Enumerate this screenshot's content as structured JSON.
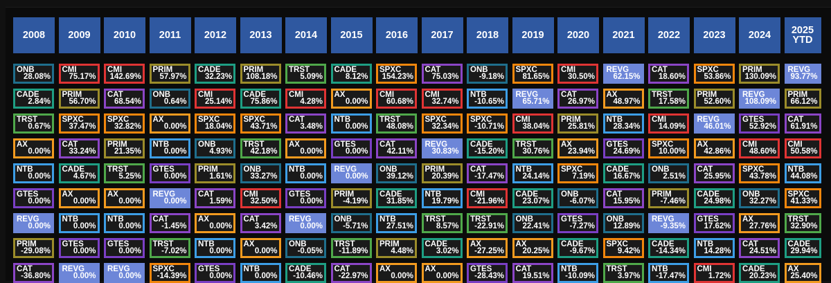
{
  "colors": {
    "header_bg": "#2f58a0",
    "page_bg": "#0b0b0b",
    "cell_bg": "#1a1a1a",
    "tickers": {
      "ONB": "#1f6e8c",
      "CMI": "#e03434",
      "PRIM": "#9b8c2a",
      "CADE": "#1e9e83",
      "TRST": "#4fa84a",
      "SPXC": "#f2860c",
      "CAT": "#8b45c6",
      "REVG": "#6d86d8",
      "AX": "#f29a1f",
      "NTB": "#3d9ee6",
      "GTES": "#7a3fc4"
    }
  },
  "chart_data": {
    "type": "table",
    "years": [
      "2008",
      "2009",
      "2010",
      "2011",
      "2012",
      "2013",
      "2014",
      "2015",
      "2016",
      "2017",
      "2018",
      "2019",
      "2020",
      "2021",
      "2022",
      "2023",
      "2024",
      "2025 YTD"
    ],
    "columns": [
      [
        [
          "ONB",
          "28.08%"
        ],
        [
          "CADE",
          "2.84%"
        ],
        [
          "TRST",
          "0.67%"
        ],
        [
          "AX",
          "0.00%"
        ],
        [
          "NTB",
          "0.00%"
        ],
        [
          "GTES",
          "0.00%"
        ],
        [
          "REVG",
          "0.00%"
        ],
        [
          "PRIM",
          "-29.08%"
        ],
        [
          "CAT",
          "-36.80%"
        ]
      ],
      [
        [
          "CMI",
          "75.17%"
        ],
        [
          "PRIM",
          "56.70%"
        ],
        [
          "SPXC",
          "37.47%"
        ],
        [
          "CAT",
          "33.24%"
        ],
        [
          "CADE",
          "4.67%"
        ],
        [
          "AX",
          "0.00%"
        ],
        [
          "NTB",
          "0.00%"
        ],
        [
          "GTES",
          "0.00%"
        ],
        [
          "REVG",
          "0.00%"
        ]
      ],
      [
        [
          "CMI",
          "142.69%"
        ],
        [
          "CAT",
          "68.54%"
        ],
        [
          "SPXC",
          "32.82%"
        ],
        [
          "PRIM",
          "21.35%"
        ],
        [
          "TRST",
          "5.25%"
        ],
        [
          "AX",
          "0.00%"
        ],
        [
          "NTB",
          "0.00%"
        ],
        [
          "GTES",
          "0.00%"
        ],
        [
          "REVG",
          "0.00%"
        ]
      ],
      [
        [
          "PRIM",
          "57.97%"
        ],
        [
          "ONB",
          "0.64%"
        ],
        [
          "AX",
          "0.00%"
        ],
        [
          "NTB",
          "0.00%"
        ],
        [
          "GTES",
          "0.00%"
        ],
        [
          "REVG",
          "0.00%"
        ],
        [
          "CAT",
          "-1.45%"
        ],
        [
          "TRST",
          "-7.02%"
        ],
        [
          "SPXC",
          "-14.39%"
        ]
      ],
      [
        [
          "CADE",
          "32.23%"
        ],
        [
          "CMI",
          "25.14%"
        ],
        [
          "SPXC",
          "18.04%"
        ],
        [
          "ONB",
          "4.93%"
        ],
        [
          "PRIM",
          "1.61%"
        ],
        [
          "CAT",
          "1.59%"
        ],
        [
          "AX",
          "0.00%"
        ],
        [
          "NTB",
          "0.00%"
        ],
        [
          "GTES",
          "0.00%"
        ]
      ],
      [
        [
          "PRIM",
          "108.18%"
        ],
        [
          "CADE",
          "75.86%"
        ],
        [
          "SPXC",
          "43.71%"
        ],
        [
          "TRST",
          "42.18%"
        ],
        [
          "ONB",
          "33.27%"
        ],
        [
          "CMI",
          "32.50%"
        ],
        [
          "CAT",
          "3.42%"
        ],
        [
          "AX",
          "0.00%"
        ],
        [
          "NTB",
          "0.00%"
        ]
      ],
      [
        [
          "TRST",
          "5.09%"
        ],
        [
          "CMI",
          "4.28%"
        ],
        [
          "CAT",
          "3.48%"
        ],
        [
          "AX",
          "0.00%"
        ],
        [
          "NTB",
          "0.00%"
        ],
        [
          "GTES",
          "0.00%"
        ],
        [
          "REVG",
          "0.00%"
        ],
        [
          "ONB",
          "-0.05%"
        ],
        [
          "CADE",
          "-10.46%"
        ]
      ],
      [
        [
          "CADE",
          "8.12%"
        ],
        [
          "AX",
          "0.00%"
        ],
        [
          "NTB",
          "0.00%"
        ],
        [
          "GTES",
          "0.00%"
        ],
        [
          "REVG",
          "0.00%"
        ],
        [
          "PRIM",
          "-4.19%"
        ],
        [
          "ONB",
          "-5.71%"
        ],
        [
          "TRST",
          "-11.89%"
        ],
        [
          "CAT",
          "-22.97%"
        ]
      ],
      [
        [
          "SPXC",
          "154.23%"
        ],
        [
          "CMI",
          "60.68%"
        ],
        [
          "TRST",
          "48.08%"
        ],
        [
          "CAT",
          "42.11%"
        ],
        [
          "ONB",
          "39.12%"
        ],
        [
          "CADE",
          "31.85%"
        ],
        [
          "NTB",
          "27.51%"
        ],
        [
          "PRIM",
          "4.48%"
        ],
        [
          "AX",
          "0.00%"
        ]
      ],
      [
        [
          "CAT",
          "75.03%"
        ],
        [
          "CMI",
          "32.74%"
        ],
        [
          "SPXC",
          "32.34%"
        ],
        [
          "REVG",
          "30.83%"
        ],
        [
          "PRIM",
          "20.39%"
        ],
        [
          "NTB",
          "19.79%"
        ],
        [
          "TRST",
          "8.57%"
        ],
        [
          "CADE",
          "3.02%"
        ],
        [
          "AX",
          "0.00%"
        ]
      ],
      [
        [
          "ONB",
          "-9.18%"
        ],
        [
          "NTB",
          "-10.65%"
        ],
        [
          "SPXC",
          "-10.71%"
        ],
        [
          "CADE",
          "-15.20%"
        ],
        [
          "CAT",
          "-17.47%"
        ],
        [
          "CMI",
          "-21.96%"
        ],
        [
          "TRST",
          "-22.91%"
        ],
        [
          "AX",
          "-27.25%"
        ],
        [
          "GTES",
          "-28.43%"
        ]
      ],
      [
        [
          "SPXC",
          "81.65%"
        ],
        [
          "REVG",
          "65.71%"
        ],
        [
          "CMI",
          "38.04%"
        ],
        [
          "TRST",
          "30.76%"
        ],
        [
          "NTB",
          "24.14%"
        ],
        [
          "CADE",
          "23.07%"
        ],
        [
          "ONB",
          "22.41%"
        ],
        [
          "AX",
          "20.25%"
        ],
        [
          "CAT",
          "19.51%"
        ]
      ],
      [
        [
          "CMI",
          "30.50%"
        ],
        [
          "CAT",
          "26.97%"
        ],
        [
          "PRIM",
          "25.81%"
        ],
        [
          "AX",
          "23.94%"
        ],
        [
          "SPXC",
          "7.19%"
        ],
        [
          "ONB",
          "-6.07%"
        ],
        [
          "GTES",
          "-7.27%"
        ],
        [
          "CADE",
          "-9.67%"
        ],
        [
          "NTB",
          "-10.09%"
        ]
      ],
      [
        [
          "REVG",
          "62.15%"
        ],
        [
          "AX",
          "48.97%"
        ],
        [
          "NTB",
          "28.34%"
        ],
        [
          "GTES",
          "24.69%"
        ],
        [
          "CADE",
          "16.67%"
        ],
        [
          "CAT",
          "15.95%"
        ],
        [
          "ONB",
          "12.89%"
        ],
        [
          "SPXC",
          "9.42%"
        ],
        [
          "TRST",
          "3.97%"
        ]
      ],
      [
        [
          "CAT",
          "18.60%"
        ],
        [
          "TRST",
          "17.58%"
        ],
        [
          "CMI",
          "14.09%"
        ],
        [
          "SPXC",
          "10.00%"
        ],
        [
          "ONB",
          "2.51%"
        ],
        [
          "PRIM",
          "-7.46%"
        ],
        [
          "REVG",
          "-9.35%"
        ],
        [
          "CADE",
          "-14.34%"
        ],
        [
          "NTB",
          "-17.47%"
        ]
      ],
      [
        [
          "SPXC",
          "53.86%"
        ],
        [
          "PRIM",
          "52.60%"
        ],
        [
          "REVG",
          "46.01%"
        ],
        [
          "AX",
          "42.86%"
        ],
        [
          "CAT",
          "25.95%"
        ],
        [
          "CADE",
          "24.98%"
        ],
        [
          "GTES",
          "17.62%"
        ],
        [
          "NTB",
          "14.28%"
        ],
        [
          "CMI",
          "1.72%"
        ]
      ],
      [
        [
          "PRIM",
          "130.09%"
        ],
        [
          "REVG",
          "108.09%"
        ],
        [
          "GTES",
          "52.92%"
        ],
        [
          "CMI",
          "48.60%"
        ],
        [
          "SPXC",
          "43.78%"
        ],
        [
          "ONB",
          "32.27%"
        ],
        [
          "AX",
          "27.76%"
        ],
        [
          "CAT",
          "24.51%"
        ],
        [
          "CADE",
          "20.23%"
        ]
      ],
      [
        [
          "REVG",
          "93.77%"
        ],
        [
          "PRIM",
          "66.12%"
        ],
        [
          "CAT",
          "61.91%"
        ],
        [
          "CMI",
          "50.58%"
        ],
        [
          "NTB",
          "44.08%"
        ],
        [
          "SPXC",
          "41.33%"
        ],
        [
          "TRST",
          "32.90%"
        ],
        [
          "CADE",
          "29.94%"
        ],
        [
          "AX",
          "25.40%"
        ]
      ]
    ]
  }
}
